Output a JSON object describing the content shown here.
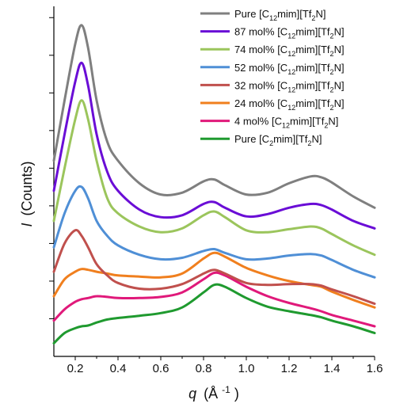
{
  "chart_data": {
    "type": "line",
    "xlabel_var": "q",
    "xlabel_unit": "(Å",
    "xlabel_exp": "-1",
    "xlabel_close": ")",
    "ylabel_var": "I",
    "ylabel_unit": "(Counts)",
    "xlim": [
      0.1,
      1.6
    ],
    "x_ticks": [
      "0.2",
      "0.4",
      "0.6",
      "0.8",
      "1.0",
      "1.2",
      "1.4",
      "1.6"
    ],
    "y_ticks": "unlabeled",
    "grid": false,
    "legend_position": "top-right",
    "x": [
      0.1,
      0.15,
      0.2,
      0.23,
      0.26,
      0.3,
      0.35,
      0.4,
      0.5,
      0.6,
      0.7,
      0.8,
      0.85,
      0.9,
      1.0,
      1.1,
      1.2,
      1.3,
      1.35,
      1.4,
      1.5,
      1.6
    ],
    "series": [
      {
        "name": "Pure [C12mim][Tf2N]",
        "legend": {
          "pre": "Pure [C",
          "sub1": "12",
          "mid": "mim][Tf",
          "sub2": "2",
          "post": "N]"
        },
        "color": "#7f7f7f",
        "values": [
          5.2,
          6.8,
          8.3,
          8.8,
          8.2,
          6.8,
          5.7,
          5.2,
          4.6,
          4.3,
          4.35,
          4.65,
          4.7,
          4.55,
          4.3,
          4.35,
          4.6,
          4.78,
          4.76,
          4.62,
          4.25,
          3.95
        ]
      },
      {
        "name": "87 mol% [C12mim][Tf2N]",
        "legend": {
          "pre": "87 mol% [C",
          "sub1": "12",
          "mid": "mim][Tf",
          "sub2": "2",
          "post": "N]"
        },
        "color": "#6a0dd6",
        "values": [
          4.4,
          5.9,
          7.3,
          7.8,
          7.2,
          5.9,
          4.9,
          4.4,
          3.9,
          3.7,
          3.75,
          4.05,
          4.1,
          3.95,
          3.72,
          3.78,
          3.95,
          4.05,
          4.02,
          3.9,
          3.6,
          3.4
        ]
      },
      {
        "name": "74 mol% [C12mim][Tf2N]",
        "legend": {
          "pre": "74 mol% [C",
          "sub1": "12",
          "mid": "mim][Tf",
          "sub2": "2",
          "post": "N]"
        },
        "color": "#9bc55c",
        "values": [
          3.6,
          5.0,
          6.3,
          6.8,
          6.3,
          5.2,
          4.2,
          3.8,
          3.45,
          3.3,
          3.4,
          3.75,
          3.85,
          3.7,
          3.35,
          3.3,
          3.38,
          3.45,
          3.4,
          3.25,
          2.95,
          2.7
        ]
      },
      {
        "name": "52 mol% [C12mim][Tf2N]",
        "legend": {
          "pre": "52 mol% [C",
          "sub1": "12",
          "mid": "mim][Tf",
          "sub2": "2",
          "post": "N]"
        },
        "color": "#4f8fd6",
        "values": [
          2.9,
          3.8,
          4.4,
          4.5,
          4.2,
          3.6,
          3.2,
          2.95,
          2.7,
          2.58,
          2.62,
          2.8,
          2.85,
          2.75,
          2.58,
          2.6,
          2.68,
          2.72,
          2.68,
          2.56,
          2.3,
          2.1
        ]
      },
      {
        "name": "32 mol% [C12mim][Tf2N]",
        "legend": {
          "pre": "32 mol% [C",
          "sub1": "12",
          "mid": "mim][Tf",
          "sub2": "2",
          "post": "N]"
        },
        "color": "#c0504d",
        "values": [
          2.25,
          3.0,
          3.35,
          3.2,
          2.9,
          2.45,
          2.15,
          1.95,
          1.8,
          1.8,
          1.92,
          2.2,
          2.3,
          2.2,
          1.95,
          1.9,
          1.92,
          1.92,
          1.88,
          1.78,
          1.6,
          1.4
        ]
      },
      {
        "name": "24 mol% [C12mim][Tf2N]",
        "legend": {
          "pre": "24 mol% [C",
          "sub1": "12",
          "mid": "mim][Tf",
          "sub2": "2",
          "post": "N]"
        },
        "color": "#f07f1e",
        "values": [
          1.6,
          2.05,
          2.25,
          2.32,
          2.3,
          2.25,
          2.2,
          2.15,
          2.12,
          2.1,
          2.2,
          2.6,
          2.75,
          2.65,
          2.35,
          2.15,
          2.0,
          1.9,
          1.85,
          1.72,
          1.5,
          1.3
        ]
      },
      {
        "name": "4 mol% [C12mim][Tf2N]",
        "legend": {
          "pre": "4 mol% [C",
          "sub1": "12",
          "mid": "mim][Tf",
          "sub2": "2",
          "post": "N]"
        },
        "color": "#e0197a",
        "values": [
          0.95,
          1.25,
          1.45,
          1.52,
          1.55,
          1.6,
          1.58,
          1.55,
          1.55,
          1.58,
          1.7,
          2.05,
          2.22,
          2.15,
          1.85,
          1.6,
          1.42,
          1.28,
          1.2,
          1.1,
          0.95,
          0.8
        ]
      },
      {
        "name": "Pure [C2mim][Tf2N]",
        "legend": {
          "pre": "Pure [C",
          "sub1": "2",
          "mid": "mim][Tf",
          "sub2": "2",
          "post": "N]"
        },
        "color": "#1f9a2f",
        "values": [
          0.35,
          0.62,
          0.75,
          0.8,
          0.82,
          0.9,
          0.98,
          1.02,
          1.08,
          1.15,
          1.3,
          1.7,
          1.9,
          1.85,
          1.55,
          1.32,
          1.2,
          1.1,
          1.04,
          0.95,
          0.8,
          0.62
        ]
      }
    ]
  }
}
